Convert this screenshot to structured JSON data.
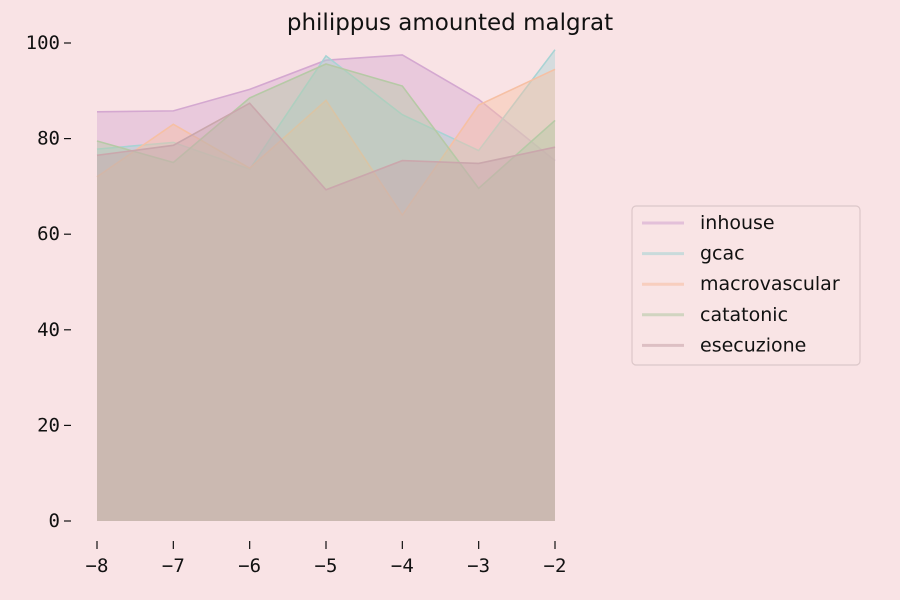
{
  "chart_data": {
    "type": "area",
    "title": "philippus amounted malgrat",
    "x": [
      -8,
      -7,
      -6,
      -5,
      -4,
      -3,
      -2
    ],
    "x_tick_labels": [
      "−8",
      "−7",
      "−6",
      "−5",
      "−4",
      "−3",
      "−2"
    ],
    "y_ticks": [
      0,
      20,
      40,
      60,
      80,
      100
    ],
    "y_tick_labels": [
      "0",
      "20",
      "40",
      "60",
      "80",
      "100"
    ],
    "xlim": [
      -8,
      -2
    ],
    "ylim": [
      0,
      100
    ],
    "grid": false,
    "legend_position": "right",
    "series": [
      {
        "name": "inhouse",
        "color": "#d4a8d0",
        "values": [
          85.6,
          85.8,
          90.3,
          96.4,
          97.5,
          88.2,
          75.4
        ]
      },
      {
        "name": "gcac",
        "color": "#a8d3d4",
        "values": [
          77.8,
          79.2,
          73.6,
          97.3,
          85.0,
          77.5,
          98.6
        ]
      },
      {
        "name": "macrovascular",
        "color": "#f6c0a4",
        "values": [
          72.0,
          83.0,
          73.8,
          88.0,
          64.0,
          87.0,
          94.5
        ]
      },
      {
        "name": "catatonic",
        "color": "#b6c9a6",
        "values": [
          79.5,
          75.0,
          88.5,
          95.6,
          91.0,
          69.6,
          83.8
        ]
      },
      {
        "name": "esecuzione",
        "color": "#caa7ac",
        "values": [
          76.5,
          78.6,
          87.4,
          69.3,
          75.4,
          74.8,
          78.2
        ]
      }
    ]
  }
}
